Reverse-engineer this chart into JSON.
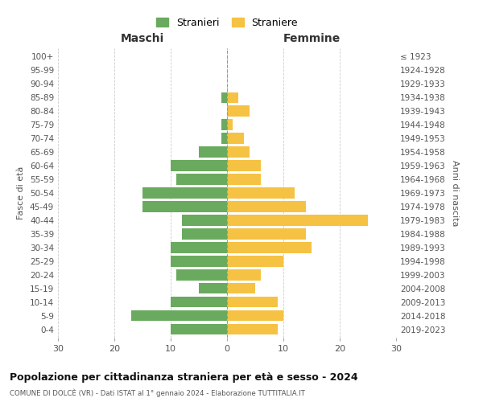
{
  "age_groups": [
    "0-4",
    "5-9",
    "10-14",
    "15-19",
    "20-24",
    "25-29",
    "30-34",
    "35-39",
    "40-44",
    "45-49",
    "50-54",
    "55-59",
    "60-64",
    "65-69",
    "70-74",
    "75-79",
    "80-84",
    "85-89",
    "90-94",
    "95-99",
    "100+"
  ],
  "birth_years": [
    "2019-2023",
    "2014-2018",
    "2009-2013",
    "2004-2008",
    "1999-2003",
    "1994-1998",
    "1989-1993",
    "1984-1988",
    "1979-1983",
    "1974-1978",
    "1969-1973",
    "1964-1968",
    "1959-1963",
    "1954-1958",
    "1949-1953",
    "1944-1948",
    "1939-1943",
    "1934-1938",
    "1929-1933",
    "1924-1928",
    "≤ 1923"
  ],
  "maschi": [
    10,
    17,
    10,
    5,
    9,
    10,
    10,
    8,
    8,
    15,
    15,
    9,
    10,
    5,
    1,
    1,
    0,
    1,
    0,
    0,
    0
  ],
  "femmine": [
    9,
    10,
    9,
    5,
    6,
    10,
    15,
    14,
    25,
    14,
    12,
    6,
    6,
    4,
    3,
    1,
    4,
    2,
    0,
    0,
    0
  ],
  "color_maschi": "#6aaa5e",
  "color_femmine": "#f5c243",
  "title": "Popolazione per cittadinanza straniera per età e sesso - 2024",
  "subtitle": "COMUNE DI DOLCÈ (VR) - Dati ISTAT al 1° gennaio 2024 - Elaborazione TUTTITALIA.IT",
  "ylabel_left": "Fasce di età",
  "ylabel_right": "Anni di nascita",
  "xlabel_maschi": "Maschi",
  "xlabel_femmine": "Femmine",
  "xlim": 30,
  "legend_stranieri": "Stranieri",
  "legend_straniere": "Straniere",
  "background_color": "#ffffff",
  "grid_color": "#cccccc"
}
